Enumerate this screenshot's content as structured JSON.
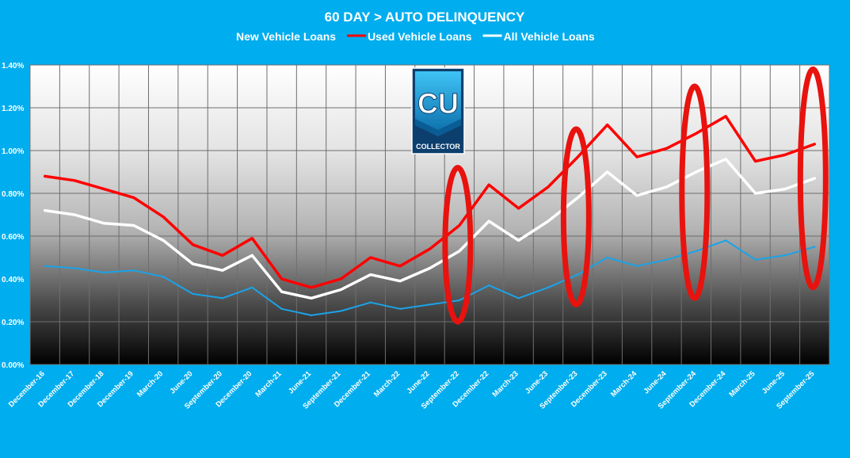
{
  "chart_data": {
    "type": "line",
    "title": "60 DAY > AUTO DELINQUENCY",
    "xlabel": "",
    "ylabel": "",
    "ylim": [
      0,
      1.4
    ],
    "y_ticks": [
      "0.00%",
      "0.20%",
      "0.40%",
      "0.60%",
      "0.80%",
      "1.00%",
      "1.20%",
      "1.40%"
    ],
    "grid": true,
    "legend_position": "top",
    "categories": [
      "December-16",
      "December-17",
      "December-18",
      "December-19",
      "March-20",
      "June-20",
      "September-20",
      "December-20",
      "March-21",
      "June-21",
      "September-21",
      "December-21",
      "March-22",
      "June-22",
      "September-22",
      "December-22",
      "March-23",
      "June-23",
      "September-23",
      "December-23",
      "March-24",
      "June-24",
      "September-24",
      "December-24",
      "March-25",
      "June-25",
      "September-25"
    ],
    "series": [
      {
        "name": "New Vehicle Loans",
        "color": "#1aa3e8",
        "values": [
          0.46,
          0.45,
          0.43,
          0.44,
          0.41,
          0.33,
          0.31,
          0.36,
          0.26,
          0.23,
          0.25,
          0.29,
          0.26,
          0.28,
          0.3,
          0.37,
          0.31,
          0.36,
          0.42,
          0.5,
          0.46,
          0.49,
          0.53,
          0.58,
          0.49,
          0.51,
          0.55
        ]
      },
      {
        "name": "Used Vehicle Loans",
        "color": "#ff0000",
        "values": [
          0.88,
          0.86,
          0.82,
          0.78,
          0.69,
          0.56,
          0.51,
          0.59,
          0.4,
          0.36,
          0.4,
          0.5,
          0.46,
          0.54,
          0.65,
          0.84,
          0.73,
          0.83,
          0.97,
          1.12,
          0.97,
          1.01,
          1.08,
          1.16,
          0.95,
          0.98,
          1.03
        ]
      },
      {
        "name": "All Vehicle Loans",
        "color": "#ffffff",
        "values": [
          0.72,
          0.7,
          0.66,
          0.65,
          0.58,
          0.47,
          0.44,
          0.51,
          0.34,
          0.31,
          0.35,
          0.42,
          0.39,
          0.45,
          0.53,
          0.67,
          0.58,
          0.67,
          0.78,
          0.9,
          0.79,
          0.83,
          0.9,
          0.96,
          0.8,
          0.82,
          0.87
        ]
      }
    ],
    "highlight_color": "#e8120e",
    "highlights": [
      {
        "category": "September-22",
        "y_range": [
          0.2,
          0.92
        ]
      },
      {
        "category": "September-23",
        "y_range": [
          0.28,
          1.1
        ]
      },
      {
        "category": "September-24",
        "y_range": [
          0.31,
          1.3
        ]
      },
      {
        "category": "September-25",
        "y_range": [
          0.36,
          1.38
        ]
      }
    ]
  },
  "logo": {
    "name": "CU COLLECTOR",
    "mark_text": "CU",
    "caption": "COLLECTOR"
  }
}
